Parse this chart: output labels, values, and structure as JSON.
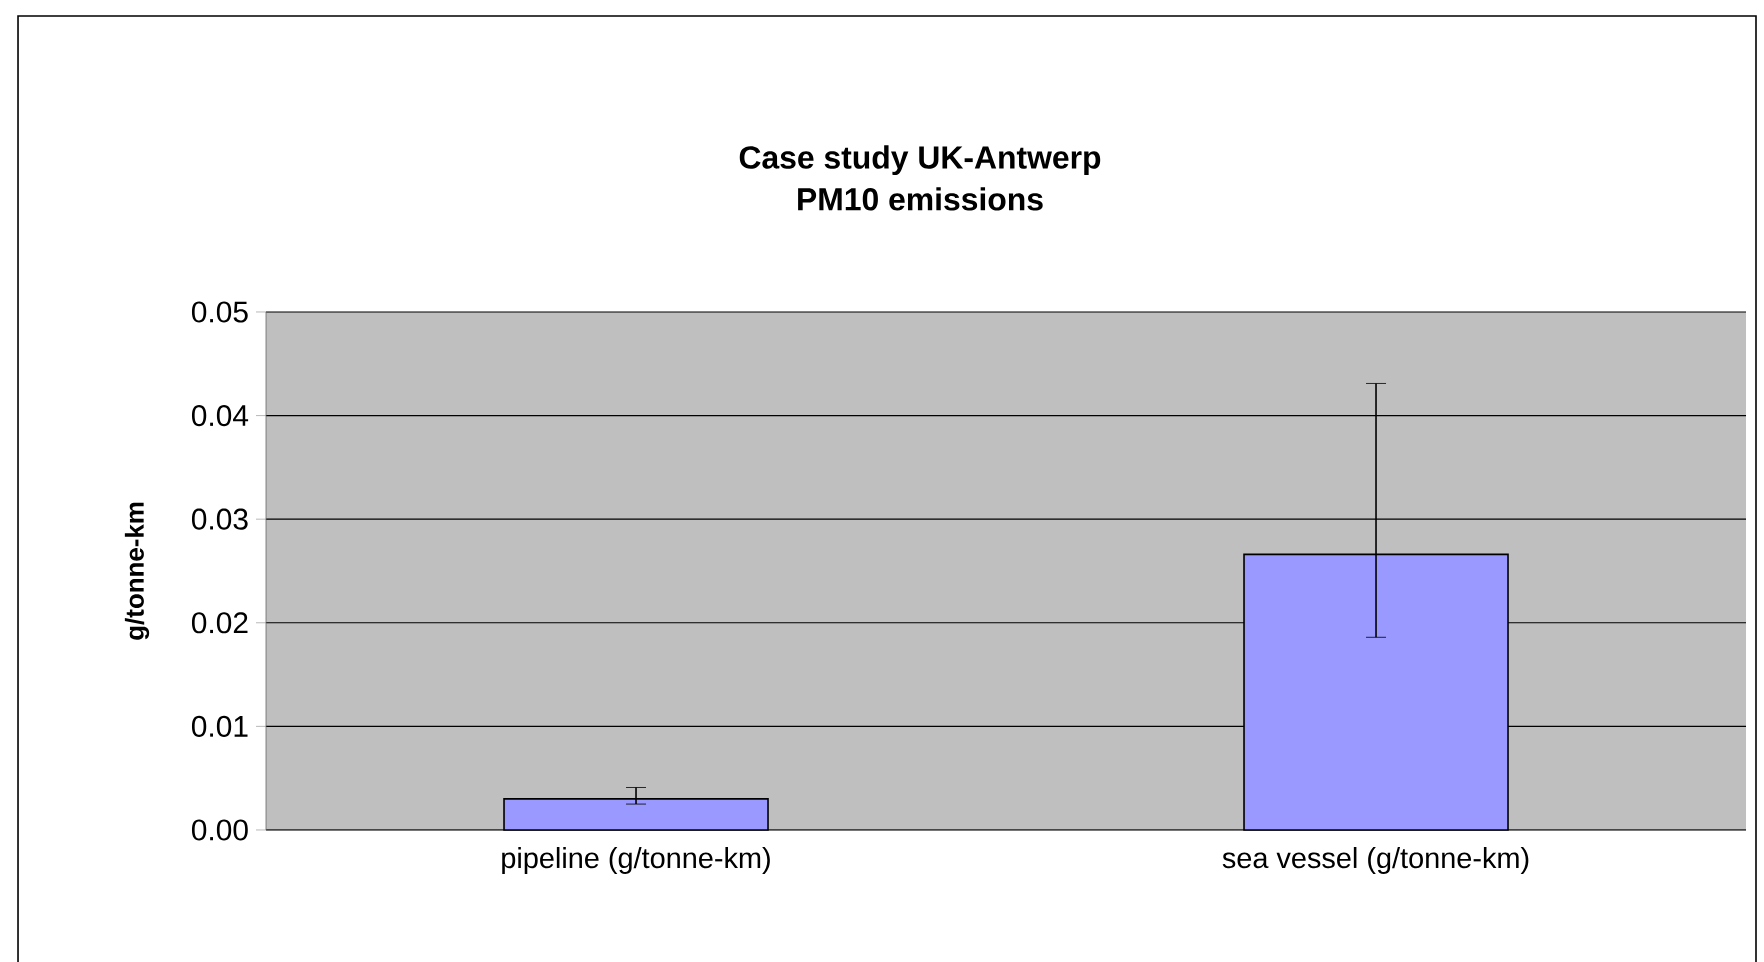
{
  "chart_data": {
    "type": "bar",
    "title": "Case study UK-Antwerp",
    "subtitle": "PM10  emissions",
    "ylabel": "g/tonne-km",
    "categories": [
      "pipeline (g/tonne-km)",
      "sea vessel (g/tonne-km)"
    ],
    "values": [
      0.003,
      0.0266
    ],
    "color": "#9999ff",
    "errors": [
      [
        0.0025,
        0.0041
      ],
      [
        0.0186,
        0.0431
      ]
    ],
    "ylim": [
      0,
      0.05
    ],
    "yticks": [
      {
        "value": 0,
        "label": "0.00"
      },
      {
        "value": 0.01,
        "label": "0.01"
      },
      {
        "value": 0.02,
        "label": "0.02"
      },
      {
        "value": 0.03,
        "label": "0.03"
      },
      {
        "value": 0.04,
        "label": "0.04"
      },
      {
        "value": 0.05,
        "label": "0.05"
      }
    ],
    "grid": "y"
  }
}
